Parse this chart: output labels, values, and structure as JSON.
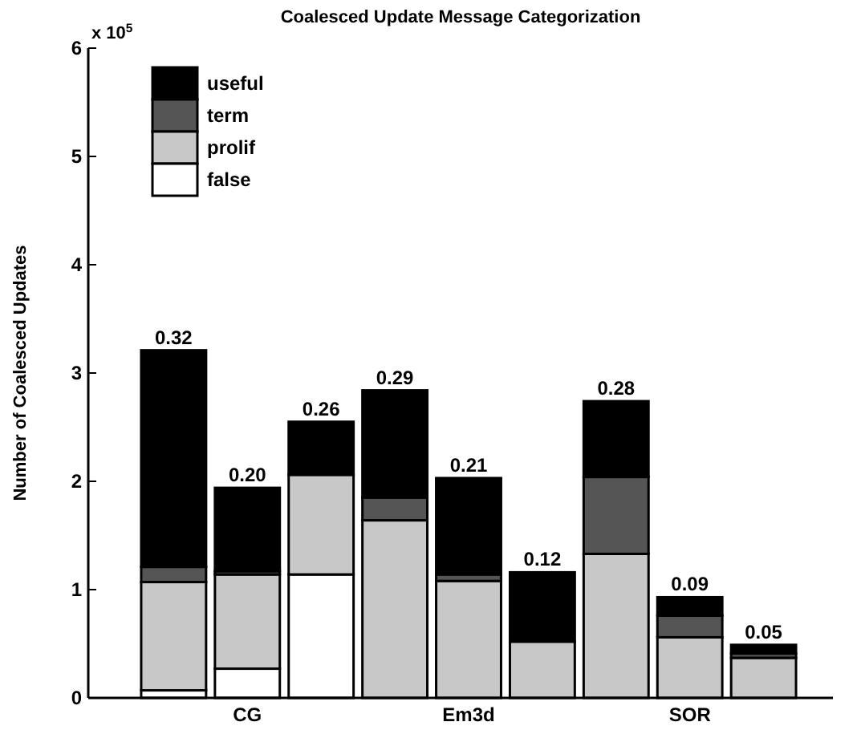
{
  "chart_data": {
    "type": "bar",
    "title": "Coalesced Update Message Categorization",
    "ylabel": "Number of Coalesced Updates",
    "annotations": [
      "x 10$^{5}$",
      {
        "text": "0.32",
        "y": 3.21
      },
      {
        "text": "0.20",
        "y": 1.94
      },
      {
        "text": "0.26",
        "y": 2.55
      },
      {
        "text": "0.29",
        "y": 2.84
      },
      {
        "text": "0.21",
        "y": 2.03
      },
      {
        "text": "0.12",
        "y": 1.16
      },
      {
        "text": "0.28",
        "y": 2.74
      },
      {
        "text": "0.09",
        "y": 0.93
      },
      {
        "text": "0.05",
        "y": 0.49
      }
    ],
    "categories": [
      null,
      "CG",
      null,
      null,
      "Em3d",
      null,
      null,
      "SOR",
      null
    ],
    "stacked": true,
    "series": [
      {
        "name": "false",
        "color": "#ffffff",
        "values": [
          0.07,
          0.27,
          1.14,
          null,
          0,
          0,
          0,
          0,
          0
        ]
      },
      {
        "name": "prolif",
        "color": "#c8c8c8",
        "values": [
          1.0,
          0.87,
          0.92,
          1.64,
          1.08,
          0.52,
          1.33,
          0.56,
          0.37
        ]
      },
      {
        "name": "term",
        "color": "#555555",
        "values": [
          0.14,
          0.03,
          0,
          0.21,
          0.06,
          0,
          0.71,
          0.2,
          0.04
        ]
      },
      {
        "name": "useful",
        "color": "#000000",
        "values": [
          2.0,
          0.77,
          0.49,
          0.99,
          0.89,
          0.64,
          0.7,
          0.17,
          0.08
        ]
      }
    ],
    "ylim": [
      0,
      6
    ],
    "yticks": [
      0,
      1,
      2,
      3,
      4,
      5,
      6
    ],
    "legend": "top left",
    "grid": false
  }
}
